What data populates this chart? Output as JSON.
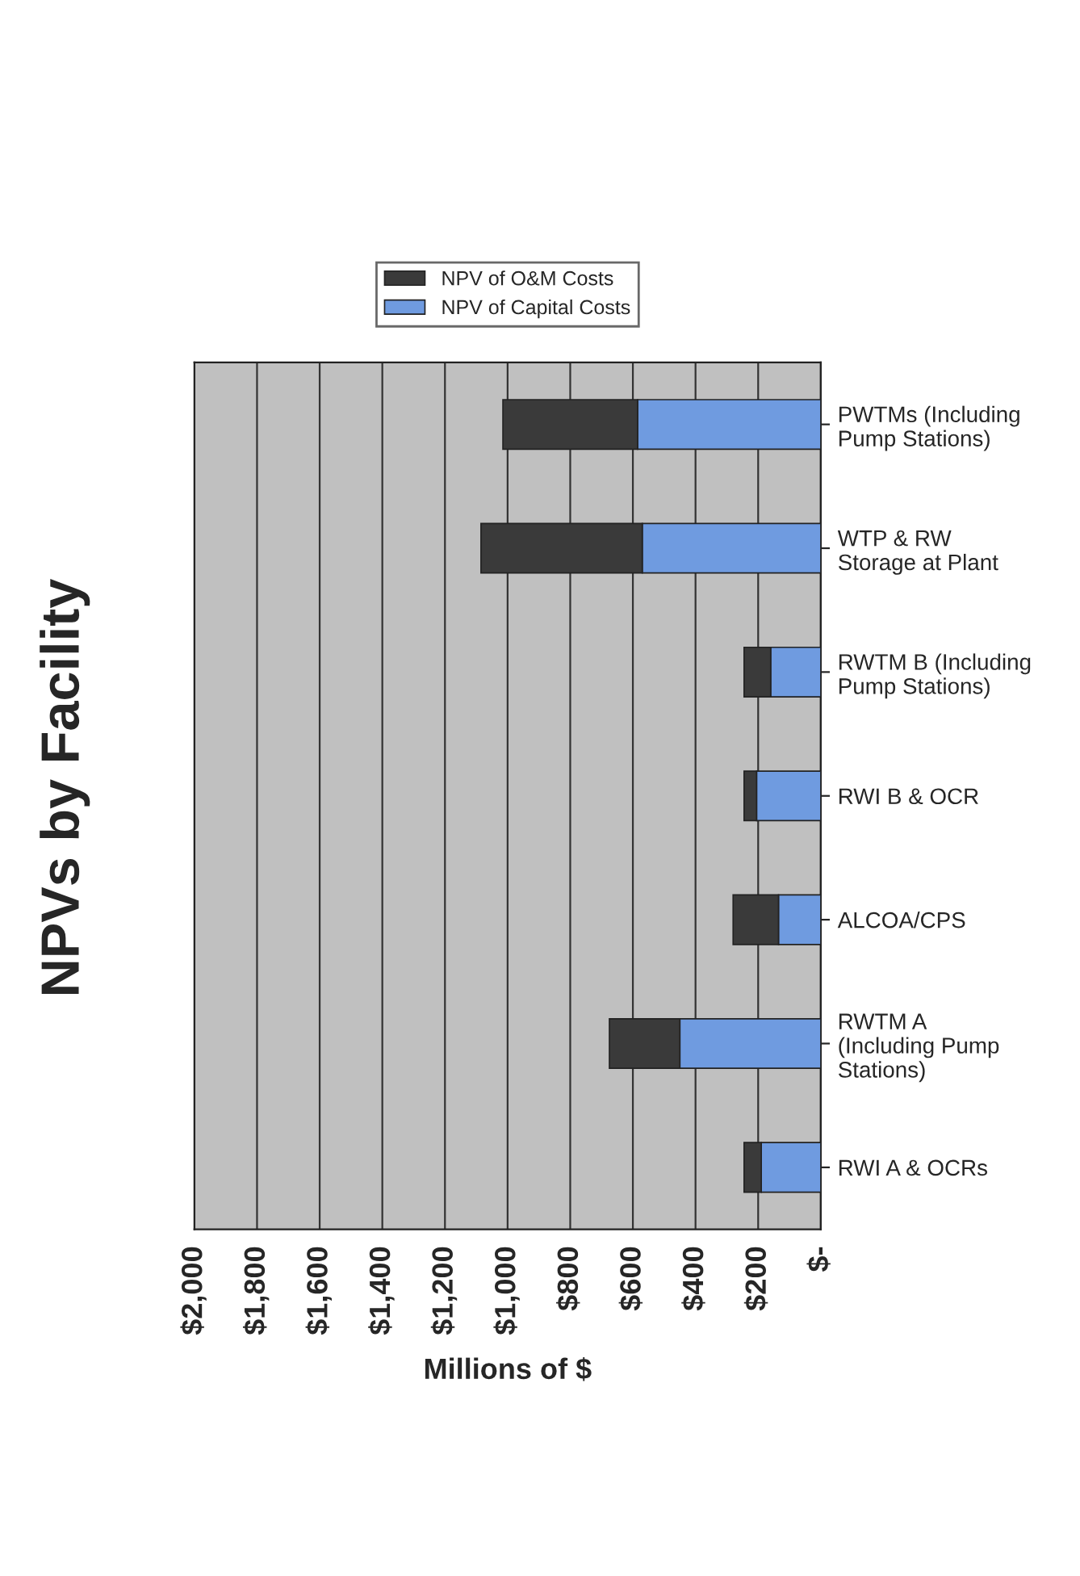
{
  "chart_data": {
    "type": "bar",
    "title": "NPVs by Facility",
    "xlabel": "Millions of $",
    "orientation": "horizontal",
    "stacked": true,
    "categories": [
      "PWTMs (Including\nPump Stations)",
      "WTP & RW\nStorage at Plant",
      "RWTM B (Including\nPump Stations)",
      "RWI B & OCR",
      "ALCOA/CPS",
      "RWTM A\n(Including Pump\nStations)",
      "RWI A & OCRs"
    ],
    "series": [
      {
        "name": "NPV of Capital Costs",
        "color": "#6f9be0",
        "values": [
          585,
          570,
          160,
          205,
          135,
          450,
          190
        ]
      },
      {
        "name": "NPV of O&M Costs",
        "color": "#3a3a3a",
        "values": [
          430,
          515,
          85,
          40,
          145,
          225,
          55
        ]
      }
    ],
    "xlim": [
      2000,
      0
    ],
    "xticks": [
      {
        "value": 2000,
        "label": "$2,000"
      },
      {
        "value": 1800,
        "label": "$1,800"
      },
      {
        "value": 1600,
        "label": "$1,600"
      },
      {
        "value": 1400,
        "label": "$1,400"
      },
      {
        "value": 1200,
        "label": "$1,200"
      },
      {
        "value": 1000,
        "label": "$1,000"
      },
      {
        "value": 800,
        "label": "$800"
      },
      {
        "value": 600,
        "label": "$600"
      },
      {
        "value": 400,
        "label": "$400"
      },
      {
        "value": 200,
        "label": "$200"
      },
      {
        "value": 0,
        "label": "$-"
      }
    ],
    "grid": "x",
    "legend": "top"
  }
}
